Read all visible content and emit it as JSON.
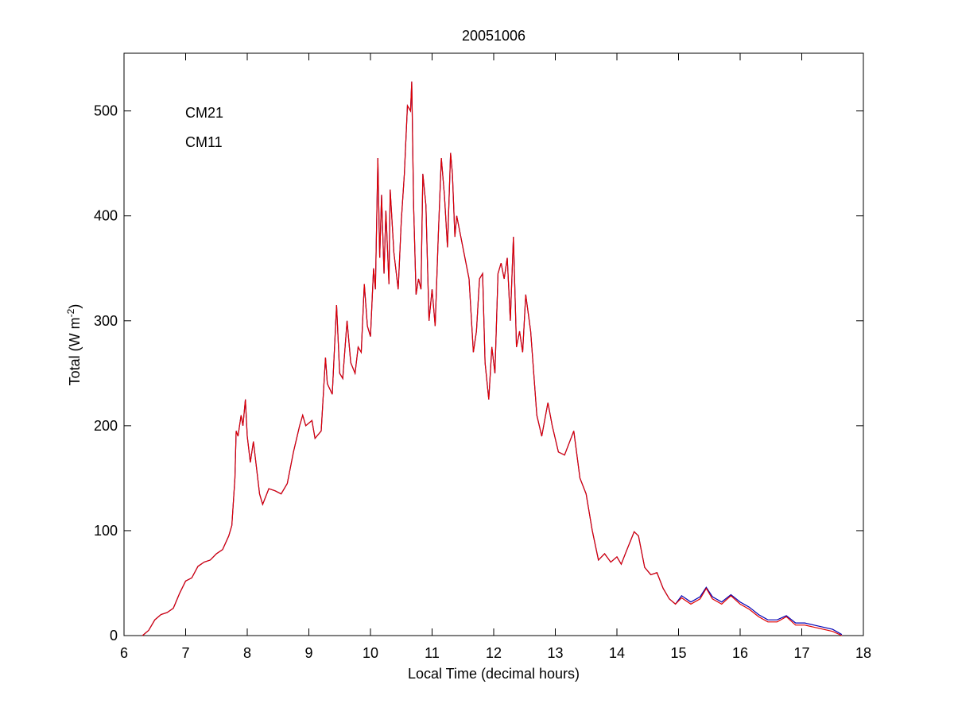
{
  "chart_data": {
    "type": "line",
    "title": "20051006",
    "xlabel": "Local Time (decimal hours)",
    "ylabel": "Total (W m",
    "ylabel_sup": "-2",
    "ylabel_end": ")",
    "xlim": [
      6,
      18
    ],
    "xticks": [
      6,
      7,
      8,
      9,
      10,
      11,
      12,
      13,
      14,
      15,
      16,
      17,
      18
    ],
    "ylim": [
      0,
      555
    ],
    "yticks": [
      0,
      100,
      200,
      300,
      400,
      500
    ],
    "grid": false,
    "legend": "upper left",
    "x": [
      6.3,
      6.4,
      6.5,
      6.6,
      6.7,
      6.8,
      6.9,
      7.0,
      7.1,
      7.2,
      7.3,
      7.4,
      7.5,
      7.6,
      7.7,
      7.75,
      7.8,
      7.82,
      7.85,
      7.9,
      7.93,
      7.97,
      8.0,
      8.05,
      8.1,
      8.15,
      8.2,
      8.25,
      8.35,
      8.45,
      8.55,
      8.65,
      8.75,
      8.85,
      8.9,
      8.95,
      9.05,
      9.1,
      9.2,
      9.27,
      9.3,
      9.38,
      9.45,
      9.5,
      9.55,
      9.62,
      9.68,
      9.75,
      9.8,
      9.85,
      9.9,
      9.95,
      10.0,
      10.05,
      10.08,
      10.12,
      10.15,
      10.18,
      10.22,
      10.25,
      10.3,
      10.32,
      10.38,
      10.45,
      10.5,
      10.55,
      10.6,
      10.65,
      10.67,
      10.7,
      10.74,
      10.78,
      10.82,
      10.85,
      10.9,
      10.95,
      11.0,
      11.05,
      11.1,
      11.15,
      11.2,
      11.25,
      11.3,
      11.33,
      11.37,
      11.4,
      11.5,
      11.6,
      11.67,
      11.72,
      11.77,
      11.82,
      11.86,
      11.92,
      11.97,
      12.02,
      12.07,
      12.12,
      12.17,
      12.22,
      12.27,
      12.32,
      12.37,
      12.42,
      12.47,
      12.52,
      12.6,
      12.7,
      12.78,
      12.88,
      12.95,
      13.05,
      13.15,
      13.3,
      13.4,
      13.5,
      13.6,
      13.7,
      13.8,
      13.9,
      14.0,
      14.07,
      14.15,
      14.28,
      14.35,
      14.45,
      14.55,
      14.65,
      14.75,
      14.85,
      14.95,
      15.05,
      15.2,
      15.35,
      15.45,
      15.55,
      15.7,
      15.85,
      16.0,
      16.15,
      16.3,
      16.45,
      16.6,
      16.75,
      16.9,
      17.05,
      17.2,
      17.35,
      17.5,
      17.65
    ],
    "series": [
      {
        "name": "CM21",
        "color": "#0000b4",
        "values": [
          0,
          5,
          15,
          20,
          22,
          26,
          40,
          52,
          55,
          66,
          70,
          72,
          78,
          82,
          95,
          105,
          150,
          195,
          190,
          210,
          200,
          225,
          190,
          165,
          185,
          160,
          135,
          125,
          140,
          138,
          135,
          145,
          175,
          200,
          210,
          200,
          205,
          188,
          195,
          265,
          240,
          230,
          315,
          250,
          245,
          300,
          260,
          250,
          275,
          270,
          335,
          295,
          285,
          350,
          330,
          455,
          360,
          420,
          345,
          405,
          335,
          425,
          365,
          330,
          395,
          440,
          505,
          500,
          528,
          410,
          325,
          340,
          330,
          440,
          410,
          300,
          330,
          295,
          380,
          455,
          420,
          370,
          460,
          440,
          380,
          400,
          370,
          340,
          270,
          290,
          340,
          345,
          260,
          225,
          275,
          250,
          345,
          355,
          340,
          360,
          300,
          380,
          275,
          290,
          270,
          325,
          290,
          210,
          190,
          222,
          200,
          175,
          172,
          195,
          150,
          135,
          100,
          72,
          78,
          70,
          75,
          68,
          80,
          99,
          95,
          65,
          58,
          60,
          45,
          35,
          30,
          38,
          32,
          37,
          46,
          37,
          32,
          39,
          32,
          27,
          20,
          15,
          15,
          19,
          12,
          12,
          10,
          8,
          6,
          1
        ]
      },
      {
        "name": "CM11",
        "color": "#e00000",
        "values": [
          0,
          5,
          15,
          20,
          22,
          26,
          40,
          52,
          55,
          66,
          70,
          72,
          78,
          82,
          95,
          105,
          150,
          195,
          190,
          210,
          200,
          225,
          190,
          165,
          185,
          160,
          135,
          125,
          140,
          138,
          135,
          145,
          175,
          200,
          210,
          200,
          205,
          188,
          195,
          265,
          240,
          230,
          315,
          250,
          245,
          300,
          260,
          250,
          275,
          270,
          335,
          295,
          285,
          350,
          330,
          455,
          360,
          420,
          345,
          405,
          335,
          425,
          365,
          330,
          395,
          440,
          505,
          500,
          528,
          410,
          325,
          340,
          330,
          440,
          410,
          300,
          330,
          295,
          380,
          455,
          420,
          370,
          460,
          440,
          380,
          400,
          370,
          340,
          270,
          290,
          340,
          345,
          260,
          225,
          275,
          250,
          345,
          355,
          340,
          360,
          300,
          380,
          275,
          290,
          270,
          325,
          290,
          210,
          190,
          222,
          200,
          175,
          172,
          195,
          150,
          135,
          100,
          72,
          78,
          70,
          75,
          68,
          80,
          99,
          95,
          65,
          58,
          60,
          45,
          35,
          30,
          36,
          30,
          35,
          45,
          35,
          30,
          38,
          30,
          25,
          18,
          13,
          13,
          18,
          10,
          10,
          8,
          6,
          4,
          0
        ]
      }
    ]
  }
}
